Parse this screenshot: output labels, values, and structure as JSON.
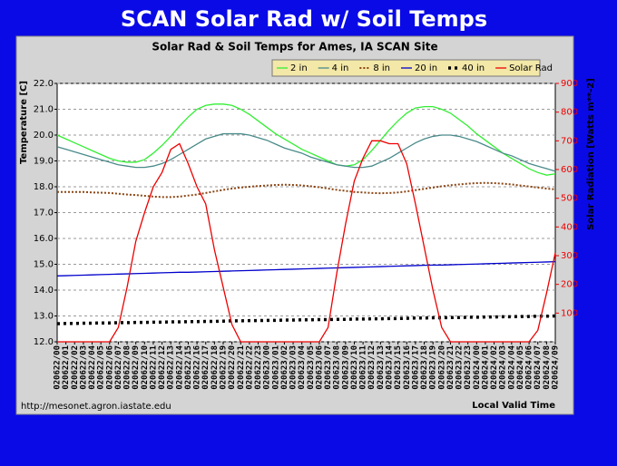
{
  "slide_title": "SCAN Solar Rad w/ Soil Temps",
  "chart_data": {
    "type": "line",
    "title": "Solar Rad & Soil Temps for Ames, IA SCAN Site",
    "ylabel": "Temperature [C]",
    "y2label": "Solar Radiation [Watts m**-2]",
    "xlabel": "Local Valid Time",
    "source": "http://mesonet.agron.iastate.edu",
    "categories": [
      "020622/00",
      "020622/01",
      "020622/02",
      "020622/03",
      "020622/04",
      "020622/05",
      "020622/06",
      "020622/07",
      "020622/08",
      "020622/09",
      "020622/10",
      "020622/11",
      "020622/12",
      "020622/13",
      "020622/14",
      "020622/15",
      "020622/16",
      "020622/17",
      "020622/18",
      "020622/19",
      "020622/20",
      "020622/21",
      "020622/22",
      "020622/23",
      "020623/00",
      "020623/01",
      "020623/02",
      "020623/03",
      "020623/04",
      "020623/05",
      "020623/06",
      "020623/07",
      "020623/08",
      "020623/09",
      "020623/10",
      "020623/11",
      "020623/12",
      "020623/13",
      "020623/14",
      "020623/15",
      "020623/16",
      "020623/17",
      "020623/18",
      "020623/19",
      "020623/20",
      "020623/21",
      "020623/22",
      "020623/23",
      "020624/00",
      "020624/01",
      "020624/02",
      "020624/03",
      "020624/04",
      "020624/05",
      "020624/06",
      "020624/07",
      "020624/08",
      "020624/09"
    ],
    "ylim": [
      12,
      22
    ],
    "yticks": [
      {
        "value": 12,
        "label": "12.0"
      },
      {
        "value": 13,
        "label": "13.0"
      },
      {
        "value": 14,
        "label": "14.0"
      },
      {
        "value": 15,
        "label": "15.0"
      },
      {
        "value": 16,
        "label": "16.0"
      },
      {
        "value": 17,
        "label": "17.0"
      },
      {
        "value": 18,
        "label": "18.0"
      },
      {
        "value": 19,
        "label": "19.0"
      },
      {
        "value": 20,
        "label": "20.0"
      },
      {
        "value": 21,
        "label": "21.0"
      },
      {
        "value": 22,
        "label": "22.0"
      }
    ],
    "y2lim": [
      0,
      900
    ],
    "y2ticks": [
      100,
      200,
      300,
      400,
      500,
      600,
      700,
      800,
      900
    ],
    "grid": true,
    "series": [
      {
        "name": "2 in",
        "color": "#33ee33",
        "dash": "solid",
        "values": [
          20.0,
          19.85,
          19.7,
          19.55,
          19.4,
          19.25,
          19.1,
          19.0,
          18.95,
          18.95,
          19.05,
          19.3,
          19.6,
          19.95,
          20.35,
          20.7,
          21.0,
          21.15,
          21.2,
          21.2,
          21.15,
          21.0,
          20.8,
          20.55,
          20.3,
          20.05,
          19.85,
          19.65,
          19.45,
          19.3,
          19.15,
          19.0,
          18.85,
          18.8,
          18.85,
          19.05,
          19.4,
          19.8,
          20.2,
          20.55,
          20.85,
          21.05,
          21.1,
          21.1,
          21.0,
          20.85,
          20.6,
          20.35,
          20.05,
          19.8,
          19.55,
          19.3,
          19.1,
          18.9,
          18.7,
          18.55,
          18.45,
          18.5
        ]
      },
      {
        "name": "4 in",
        "color": "#4a8a8a",
        "dash": "solid",
        "values": [
          19.55,
          19.45,
          19.35,
          19.25,
          19.15,
          19.05,
          18.95,
          18.85,
          18.8,
          18.75,
          18.75,
          18.8,
          18.9,
          19.05,
          19.25,
          19.45,
          19.65,
          19.85,
          19.95,
          20.05,
          20.05,
          20.05,
          20.0,
          19.9,
          19.8,
          19.65,
          19.5,
          19.4,
          19.3,
          19.15,
          19.05,
          18.95,
          18.85,
          18.8,
          18.75,
          18.75,
          18.8,
          18.95,
          19.1,
          19.3,
          19.5,
          19.7,
          19.85,
          19.95,
          20.0,
          20.0,
          19.95,
          19.85,
          19.75,
          19.6,
          19.45,
          19.3,
          19.2,
          19.05,
          18.9,
          18.8,
          18.7,
          18.6
        ]
      },
      {
        "name": "8 in",
        "color": "#8b4513",
        "dash": "dashed",
        "values": [
          17.8,
          17.8,
          17.8,
          17.8,
          17.78,
          17.77,
          17.76,
          17.73,
          17.7,
          17.68,
          17.65,
          17.62,
          17.6,
          17.6,
          17.62,
          17.66,
          17.7,
          17.76,
          17.82,
          17.88,
          17.93,
          17.97,
          18.0,
          18.03,
          18.05,
          18.07,
          18.08,
          18.07,
          18.05,
          18.02,
          17.98,
          17.93,
          17.88,
          17.84,
          17.8,
          17.78,
          17.76,
          17.75,
          17.76,
          17.78,
          17.82,
          17.87,
          17.92,
          17.97,
          18.02,
          18.06,
          18.09,
          18.12,
          18.14,
          18.15,
          18.14,
          18.12,
          18.09,
          18.05,
          18.01,
          17.97,
          17.93,
          17.9
        ]
      },
      {
        "name": "20 in",
        "color": "#0000cc",
        "dash": "solid",
        "values": [
          14.55,
          14.56,
          14.57,
          14.58,
          14.59,
          14.6,
          14.61,
          14.62,
          14.63,
          14.64,
          14.65,
          14.66,
          14.67,
          14.68,
          14.69,
          14.69,
          14.7,
          14.71,
          14.72,
          14.73,
          14.74,
          14.75,
          14.76,
          14.77,
          14.78,
          14.79,
          14.8,
          14.81,
          14.82,
          14.83,
          14.84,
          14.85,
          14.86,
          14.87,
          14.88,
          14.89,
          14.9,
          14.91,
          14.92,
          14.93,
          14.94,
          14.95,
          14.96,
          14.97,
          14.97,
          14.98,
          14.99,
          15.0,
          15.01,
          15.02,
          15.03,
          15.04,
          15.05,
          15.06,
          15.07,
          15.08,
          15.09,
          15.1
        ]
      },
      {
        "name": "40 in",
        "color": "#000000",
        "dash": "dotted",
        "values": [
          12.7,
          12.71,
          12.71,
          12.72,
          12.72,
          12.73,
          12.73,
          12.74,
          12.74,
          12.75,
          12.75,
          12.76,
          12.76,
          12.77,
          12.77,
          12.78,
          12.78,
          12.79,
          12.79,
          12.8,
          12.81,
          12.81,
          12.82,
          12.82,
          12.83,
          12.83,
          12.84,
          12.84,
          12.85,
          12.85,
          12.86,
          12.86,
          12.87,
          12.87,
          12.88,
          12.88,
          12.89,
          12.89,
          12.9,
          12.9,
          12.91,
          12.92,
          12.92,
          12.93,
          12.93,
          12.94,
          12.94,
          12.95,
          12.95,
          12.96,
          12.96,
          12.97,
          12.97,
          12.98,
          12.98,
          12.99,
          12.99,
          13.0
        ]
      },
      {
        "name": "Solar Rad",
        "color": "#ee0000",
        "dash": "solid",
        "axis": "y2",
        "values": [
          0,
          0,
          0,
          0,
          0,
          0,
          0,
          50,
          190,
          350,
          450,
          540,
          590,
          670,
          690,
          620,
          540,
          480,
          320,
          190,
          60,
          0,
          0,
          0,
          0,
          0,
          0,
          0,
          0,
          0,
          0,
          50,
          240,
          410,
          560,
          640,
          700,
          700,
          690,
          690,
          620,
          480,
          330,
          180,
          50,
          0,
          0,
          0,
          0,
          0,
          0,
          0,
          0,
          0,
          0,
          40,
          170,
          310
        ]
      }
    ]
  }
}
